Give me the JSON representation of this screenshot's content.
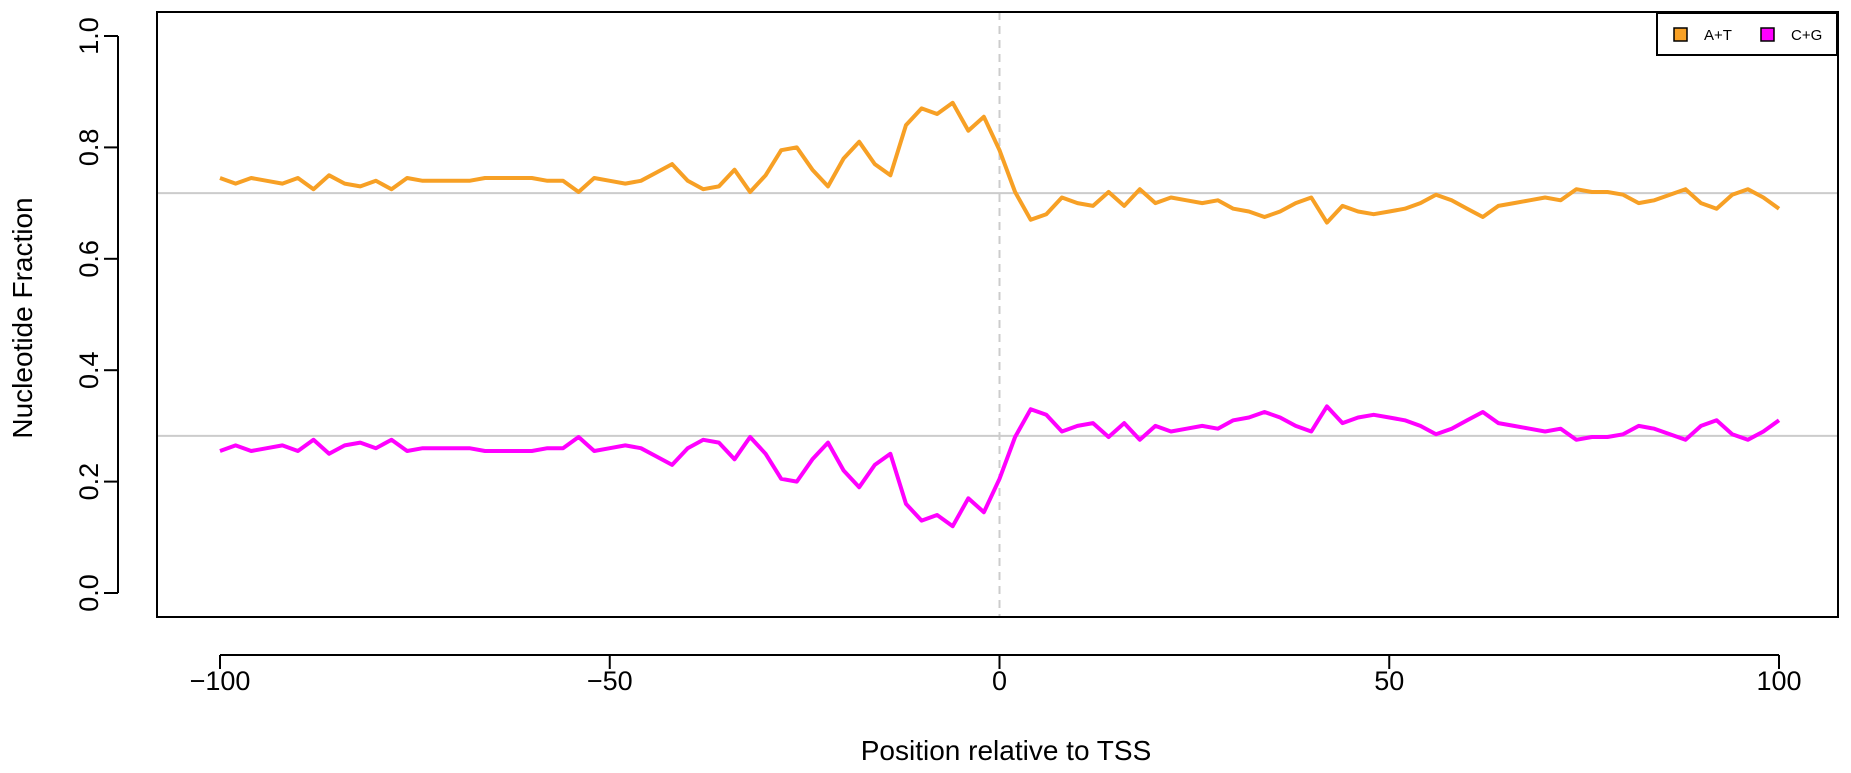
{
  "chart_data": {
    "type": "line",
    "xlabel": "Position relative to TSS",
    "ylabel": "Nucleotide Fraction",
    "xlim": [
      -100,
      100
    ],
    "ylim": [
      0,
      1
    ],
    "x_ticks": [
      -100,
      -50,
      0,
      50,
      100
    ],
    "x_tick_labels": [
      "−100",
      "−50",
      "0",
      "50",
      "100"
    ],
    "y_ticks": [
      0,
      0.2,
      0.4,
      0.6,
      0.8,
      1
    ],
    "y_tick_labels": [
      "0.0",
      "0.2",
      "0.4",
      "0.6",
      "0.8",
      "1.0"
    ],
    "x": [
      -100,
      -98,
      -96,
      -94,
      -92,
      -90,
      -88,
      -86,
      -84,
      -82,
      -80,
      -78,
      -76,
      -74,
      -72,
      -70,
      -68,
      -66,
      -64,
      -62,
      -60,
      -58,
      -56,
      -54,
      -52,
      -50,
      -48,
      -46,
      -44,
      -42,
      -40,
      -38,
      -36,
      -34,
      -32,
      -30,
      -28,
      -26,
      -24,
      -22,
      -20,
      -18,
      -16,
      -14,
      -12,
      -10,
      -8,
      -6,
      -4,
      -2,
      0,
      2,
      4,
      6,
      8,
      10,
      12,
      14,
      16,
      18,
      20,
      22,
      24,
      26,
      28,
      30,
      32,
      34,
      36,
      38,
      40,
      42,
      44,
      46,
      48,
      50,
      52,
      54,
      56,
      58,
      60,
      62,
      64,
      66,
      68,
      70,
      72,
      74,
      76,
      78,
      80,
      82,
      84,
      86,
      88,
      90,
      92,
      94,
      96,
      98,
      100
    ],
    "series": [
      {
        "name": "A+T",
        "color": "#f7a025",
        "values": [
          0.745,
          0.735,
          0.745,
          0.74,
          0.735,
          0.745,
          0.725,
          0.75,
          0.735,
          0.73,
          0.74,
          0.725,
          0.745,
          0.74,
          0.74,
          0.74,
          0.74,
          0.745,
          0.745,
          0.745,
          0.745,
          0.74,
          0.74,
          0.72,
          0.745,
          0.74,
          0.735,
          0.74,
          0.755,
          0.77,
          0.74,
          0.725,
          0.73,
          0.76,
          0.72,
          0.75,
          0.795,
          0.8,
          0.76,
          0.73,
          0.78,
          0.81,
          0.77,
          0.75,
          0.84,
          0.87,
          0.86,
          0.88,
          0.83,
          0.855,
          0.795,
          0.72,
          0.67,
          0.68,
          0.71,
          0.7,
          0.695,
          0.72,
          0.695,
          0.725,
          0.7,
          0.71,
          0.705,
          0.7,
          0.705,
          0.69,
          0.685,
          0.675,
          0.685,
          0.7,
          0.71,
          0.665,
          0.695,
          0.685,
          0.68,
          0.685,
          0.69,
          0.7,
          0.715,
          0.705,
          0.69,
          0.675,
          0.695,
          0.7,
          0.705,
          0.71,
          0.705,
          0.725,
          0.72,
          0.72,
          0.715,
          0.7,
          0.705,
          0.715,
          0.725,
          0.7,
          0.69,
          0.715,
          0.725,
          0.71,
          0.69
        ],
        "mean": 0.718
      },
      {
        "name": "C+G",
        "color": "#ff00ff",
        "values": [
          0.255,
          0.265,
          0.255,
          0.26,
          0.265,
          0.255,
          0.275,
          0.25,
          0.265,
          0.27,
          0.26,
          0.275,
          0.255,
          0.26,
          0.26,
          0.26,
          0.26,
          0.255,
          0.255,
          0.255,
          0.255,
          0.26,
          0.26,
          0.28,
          0.255,
          0.26,
          0.265,
          0.26,
          0.245,
          0.23,
          0.26,
          0.275,
          0.27,
          0.24,
          0.28,
          0.25,
          0.205,
          0.2,
          0.24,
          0.27,
          0.22,
          0.19,
          0.23,
          0.25,
          0.16,
          0.13,
          0.14,
          0.12,
          0.17,
          0.145,
          0.205,
          0.28,
          0.33,
          0.32,
          0.29,
          0.3,
          0.305,
          0.28,
          0.305,
          0.275,
          0.3,
          0.29,
          0.295,
          0.3,
          0.295,
          0.31,
          0.315,
          0.325,
          0.315,
          0.3,
          0.29,
          0.335,
          0.305,
          0.315,
          0.32,
          0.315,
          0.31,
          0.3,
          0.285,
          0.295,
          0.31,
          0.325,
          0.305,
          0.3,
          0.295,
          0.29,
          0.295,
          0.275,
          0.28,
          0.28,
          0.285,
          0.3,
          0.295,
          0.285,
          0.275,
          0.3,
          0.31,
          0.285,
          0.275,
          0.29,
          0.31
        ],
        "mean": 0.282
      }
    ],
    "reference_lines": {
      "vertical_x": 0,
      "vertical_style": "dashed",
      "horizontal_color": "#cccccc"
    },
    "grid": false,
    "legend_placement": "top-right",
    "legend": [
      {
        "label": "A+T",
        "color": "#f7a025"
      },
      {
        "label": "C+G",
        "color": "#ff00ff"
      }
    ]
  }
}
